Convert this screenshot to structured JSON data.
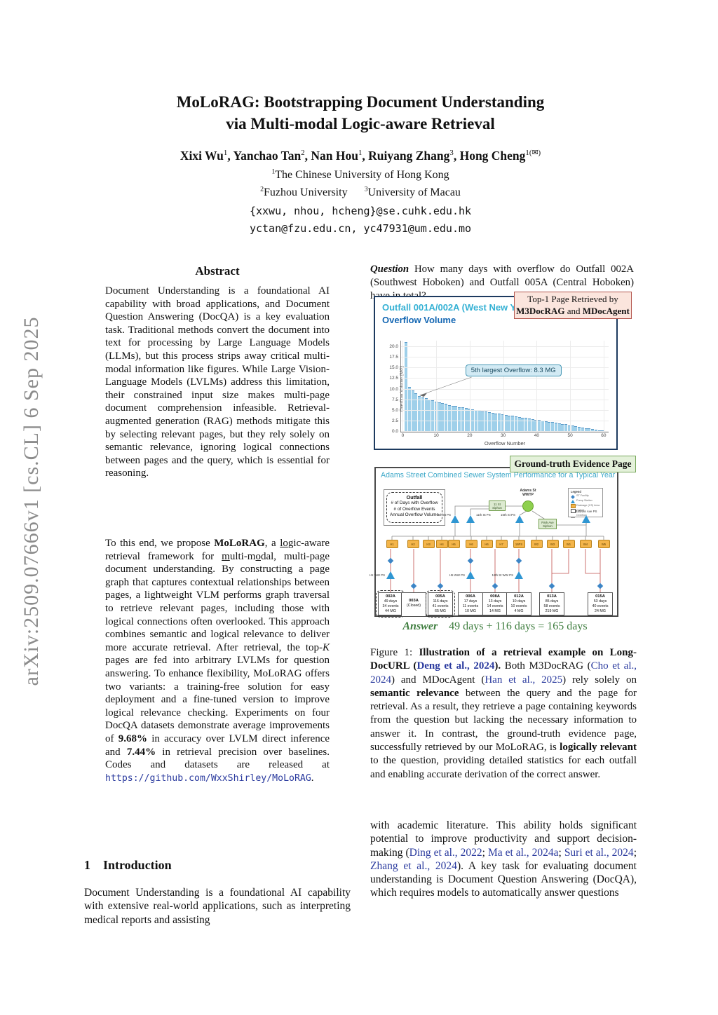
{
  "arxiv_banner": "arXiv:2509.07666v1  [cs.CL]  6 Sep 2025",
  "header": {
    "title_line1": "MoLoRAG: Bootstrapping Document Understanding",
    "title_line2": "via Multi-modal Logic-aware Retrieval",
    "authors_segments": [
      {
        "t": "Xixi Wu"
      },
      {
        "t": "1",
        "s": "sup"
      },
      {
        "t": ", Yanchao Tan"
      },
      {
        "t": "2",
        "s": "sup"
      },
      {
        "t": ", Nan Hou"
      },
      {
        "t": "1",
        "s": "sup"
      },
      {
        "t": ", Ruiyang Zhang"
      },
      {
        "t": "3",
        "s": "sup"
      },
      {
        "t": ", Hong Cheng"
      },
      {
        "t": "1(✉)",
        "s": "sup"
      }
    ],
    "affil1_segments": [
      {
        "t": "1",
        "s": "sup"
      },
      {
        "t": "The Chinese University of Hong Kong"
      }
    ],
    "affil2_segments": [
      {
        "t": "2",
        "s": "sup"
      },
      {
        "t": "Fuzhou University"
      },
      {
        "t": "  "
      },
      {
        "t": "3",
        "s": "sup"
      },
      {
        "t": "University of Macau"
      }
    ],
    "email1": "{xxwu, nhou, hcheng}@se.cuhk.edu.hk",
    "email2": "yctan@fzu.edu.cn, yc47931@um.edu.mo"
  },
  "abstract": {
    "heading": "Abstract",
    "p1": "Document Understanding is a foundational AI capability with broad applications, and Document Question Answering (DocQA) is a key evaluation task. Traditional methods convert the document into text for processing by Large Language Models (LLMs), but this process strips away critical multi-modal information like figures. While Large Vision-Language Models (LVLMs) address this limitation, their constrained input size makes multi-page document comprehension infeasible. Retrieval-augmented generation (RAG) methods mitigate this by selecting relevant pages, but they rely solely on semantic relevance, ignoring logical connections between pages and the query, which is essential for reasoning.",
    "p2_segments": [
      {
        "t": "To this end, we propose "
      },
      {
        "t": "MoLoRAG",
        "s": "b"
      },
      {
        "t": ", a "
      },
      {
        "t": "lo",
        "s": "u"
      },
      {
        "t": "gic-aware retrieval framework for "
      },
      {
        "t": "m",
        "s": "u"
      },
      {
        "t": "ulti-m"
      },
      {
        "t": "o",
        "s": "u"
      },
      {
        "t": "dal, multi-page document understanding. By constructing a page graph that captures contextual relationships between pages, a lightweight VLM performs graph traversal to retrieve relevant pages, including those with logical connections often overlooked. This approach combines semantic and logical relevance to deliver more accurate retrieval. After retrieval, the top-"
      },
      {
        "t": "K",
        "s": "i"
      },
      {
        "t": " pages are fed into arbitrary LVLMs for question answering. To enhance flexibility, MoLoRAG offers two variants: a training-free solution for easy deployment and a fine-tuned version to improve logical relevance checking. Experiments on four DocQA datasets demonstrate average improvements of "
      },
      {
        "t": "9.68%",
        "s": "b"
      },
      {
        "t": " in accuracy over LVLM direct inference and "
      },
      {
        "t": "7.44%",
        "s": "b"
      },
      {
        "t": " in retrieval precision over baselines. Codes and datasets are released at "
      },
      {
        "t": "https://github.com/WxxShirley/MoLoRAG",
        "s": "link"
      },
      {
        "t": "."
      }
    ]
  },
  "intro": {
    "heading": "1  Introduction",
    "p1": "Document Understanding is a foundational AI capability with extensive real-world applications, such as interpreting medical reports and assisting"
  },
  "figure": {
    "question_segments": [
      {
        "t": "Question",
        "s": "bi"
      },
      {
        "t": " How many days with overflow do Outfall 002A (Southwest Hoboken) and Outfall 005A (Central Hoboken) have in total?"
      }
    ],
    "top1_line1": "Top-1 Page Retrieved by",
    "top1_line2_segments": [
      {
        "t": "M3DocRAG",
        "s": "b"
      },
      {
        "t": " and "
      },
      {
        "t": "MDocAgent",
        "s": "b"
      }
    ],
    "evidence_label": "Ground-truth Evidence Page",
    "diagram": {
      "title": "Adams Street Combined Sewer System Performance for a Typical Year",
      "outfall_legend_title": "Outfall",
      "outfall_legend_lines": [
        "# of Days with Overflow",
        "# of Overflow Events",
        "Annual Overflow Volume"
      ],
      "wwtp_label_line1": "Adams St",
      "wwtp_label_line2": "WWTP",
      "legend_title": "Legend",
      "legend_items": [
        "ST Facility",
        "Pump Station",
        "Drainage (CS) Area Basin",
        "Outfall",
        "Overflow"
      ],
      "pump_stations": [
        "5th St PS",
        "11th St PS",
        "16th St PS",
        "Baldwin Ave PS"
      ],
      "siphons": [
        "11 St Siphon",
        "Park Ave Siphon"
      ],
      "ww_pumps": [
        "H1 WW PS",
        "H5 WW PS",
        "18th St WW PS"
      ],
      "area_boxes": [
        "H1",
        "H2",
        "H3",
        "H4",
        "H5",
        "H6",
        "H6",
        "H7",
        "16PS",
        "W2",
        "W3",
        "W1",
        "W4",
        "W5"
      ],
      "outfalls": [
        {
          "id": "002A",
          "days": "49 days",
          "events": "34 events",
          "volume": "44 MG",
          "highlight": true
        },
        {
          "id": "003A",
          "days": "(Closed)",
          "events": "",
          "volume": "",
          "highlight": false
        },
        {
          "id": "005A",
          "days": "116 days",
          "events": "41 events",
          "volume": "65 MG",
          "highlight": true
        },
        {
          "id": "006A",
          "days": "17 days",
          "events": "11 events",
          "volume": "10 MG",
          "highlight": false
        },
        {
          "id": "008A",
          "days": "13 days",
          "events": "14 events",
          "volume": "14 MG",
          "highlight": false
        },
        {
          "id": "012A",
          "days": "10 days",
          "events": "10 events",
          "volume": "4 MG",
          "highlight": false
        },
        {
          "id": "013A",
          "days": "85 days",
          "events": "58 events",
          "volume": "219 MG",
          "highlight": false
        },
        {
          "id": "015A",
          "days": "53 days",
          "events": "40 events",
          "volume": "24 MG",
          "highlight": false
        }
      ]
    },
    "answer_segments": [
      {
        "t": "Answer",
        "s": "bi"
      },
      {
        "t": "  49 days + 116 days = 165 days"
      }
    ],
    "caption_segments": [
      {
        "t": "Figure 1: "
      },
      {
        "t": "Illustration of a retrieval example on Long-DocURL (",
        "s": "b"
      },
      {
        "t": "Deng et al., 2024",
        "s": "citeb"
      },
      {
        "t": ").",
        "s": "b"
      },
      {
        "t": " Both M3DocRAG ("
      },
      {
        "t": "Cho et al., 2024",
        "s": "cite"
      },
      {
        "t": ") and MDocAgent ("
      },
      {
        "t": "Han et al., 2025",
        "s": "cite"
      },
      {
        "t": ") rely solely on "
      },
      {
        "t": "semantic relevance",
        "s": "b"
      },
      {
        "t": " between the query and the page for retrieval. As a result, they retrieve a page containing keywords from the question but lacking the necessary information to answer it. In contrast, the ground-truth evidence page, successfully retrieved by our MoLoRAG, is "
      },
      {
        "t": "logically relevant",
        "s": "b"
      },
      {
        "t": " to the question, providing detailed statistics for each outfall and enabling accurate derivation of the correct answer."
      }
    ]
  },
  "body": {
    "p1_segments": [
      {
        "t": "with academic literature. This ability holds significant potential to improve productivity and support decision-making ("
      },
      {
        "t": "Ding et al., 2022",
        "s": "cite"
      },
      {
        "t": "; "
      },
      {
        "t": "Ma et al., 2024a",
        "s": "cite"
      },
      {
        "t": "; "
      },
      {
        "t": "Suri et al., 2024",
        "s": "cite"
      },
      {
        "t": "; "
      },
      {
        "t": "Zhang et al., 2024",
        "s": "cite"
      },
      {
        "t": "). A key task for evaluating document understanding is Document Question Answering (DocQA), which requires models to automatically answer questions"
      }
    ]
  },
  "chart_data": {
    "type": "bar",
    "panel_title": "Outfall 001A/002A (West New York)",
    "title": "Overflow Volume",
    "xlabel": "Overflow Number",
    "ylabel": "Overflow Volume (MG)",
    "ylim": [
      0,
      21.5
    ],
    "xlim": [
      0,
      62
    ],
    "yticks": [
      "0.0",
      "2.5",
      "5.0",
      "7.5",
      "10.0",
      "12.5",
      "15.0",
      "17.5",
      "20.0"
    ],
    "xticks": [
      0,
      10,
      20,
      30,
      40,
      50,
      60
    ],
    "grid": true,
    "annotation": "5th largest Overflow: 8.3 MG",
    "values": [
      21.0,
      10.5,
      9.6,
      8.9,
      8.3,
      8.0,
      7.7,
      7.5,
      7.2,
      7.0,
      6.8,
      6.6,
      6.4,
      6.2,
      6.0,
      5.9,
      5.7,
      5.6,
      5.4,
      5.3,
      5.1,
      5.0,
      4.9,
      4.7,
      4.6,
      4.5,
      4.3,
      4.2,
      4.1,
      4.0,
      3.8,
      3.7,
      3.6,
      3.5,
      3.3,
      3.2,
      3.1,
      3.0,
      2.8,
      2.7,
      2.6,
      2.5,
      2.3,
      2.2,
      2.1,
      2.0,
      1.8,
      1.7,
      1.6,
      1.4,
      1.3,
      1.2,
      1.0,
      0.9,
      0.7,
      0.6,
      0.5,
      0.3,
      0.2,
      0.1
    ]
  }
}
